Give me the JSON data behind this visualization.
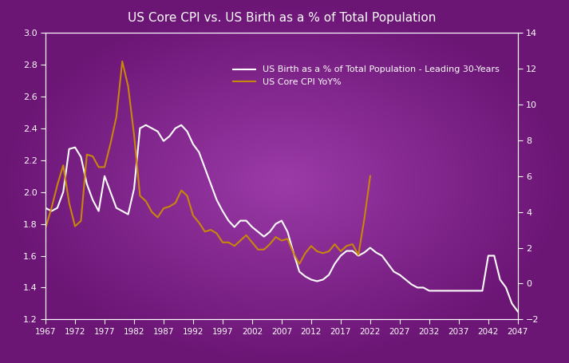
{
  "title": "US Core CPI vs. US Birth as a % of Total Population",
  "bg_color_outer": "#6B1F7A",
  "bg_color_inner": "#9B3BA0",
  "plot_bg_outer": "#6B1F7A",
  "plot_bg_inner": "#9B3BA0",
  "line1_color": "#FFFFFF",
  "line2_color": "#C8860A",
  "legend_label1": "US Birth as a % of Total Population - Leading 30-Years",
  "legend_label2": "US Core CPI YoY%",
  "xlim": [
    1967,
    2047
  ],
  "ylim_left": [
    1.2,
    3.0
  ],
  "ylim_right": [
    -2,
    14
  ],
  "xticks": [
    1967,
    1972,
    1977,
    1982,
    1987,
    1992,
    1997,
    2002,
    2007,
    2012,
    2017,
    2022,
    2027,
    2032,
    2037,
    2042,
    2047
  ],
  "yticks_left": [
    1.2,
    1.4,
    1.6,
    1.8,
    2.0,
    2.2,
    2.4,
    2.6,
    2.8,
    3.0
  ],
  "yticks_right": [
    -2,
    0,
    2,
    4,
    6,
    8,
    10,
    12,
    14
  ],
  "birth_data": {
    "years": [
      1967,
      1968,
      1969,
      1970,
      1971,
      1972,
      1973,
      1974,
      1975,
      1976,
      1977,
      1978,
      1979,
      1980,
      1981,
      1982,
      1983,
      1984,
      1985,
      1986,
      1987,
      1988,
      1989,
      1990,
      1991,
      1992,
      1993,
      1994,
      1995,
      1996,
      1997,
      1998,
      1999,
      2000,
      2001,
      2002,
      2003,
      2004,
      2005,
      2006,
      2007,
      2008,
      2009,
      2010,
      2011,
      2012,
      2013,
      2014,
      2015,
      2016,
      2017,
      2018,
      2019,
      2020,
      2021,
      2022,
      2023,
      2024,
      2025,
      2026,
      2027,
      2028,
      2029,
      2030,
      2031,
      2032,
      2033,
      2034,
      2035,
      2036,
      2037,
      2038,
      2039,
      2040,
      2041,
      2042,
      2043,
      2044,
      2045,
      2046,
      2047
    ],
    "values": [
      1.9,
      1.88,
      1.9,
      2.0,
      2.27,
      2.28,
      2.22,
      2.05,
      1.95,
      1.88,
      2.1,
      2.0,
      1.9,
      1.88,
      1.86,
      2.02,
      2.4,
      2.42,
      2.4,
      2.38,
      2.32,
      2.35,
      2.4,
      2.42,
      2.38,
      2.3,
      2.25,
      2.15,
      2.05,
      1.95,
      1.88,
      1.82,
      1.78,
      1.82,
      1.82,
      1.78,
      1.75,
      1.72,
      1.75,
      1.8,
      1.82,
      1.75,
      1.62,
      1.5,
      1.47,
      1.45,
      1.44,
      1.45,
      1.48,
      1.55,
      1.6,
      1.63,
      1.63,
      1.6,
      1.62,
      1.65,
      1.62,
      1.6,
      1.55,
      1.5,
      1.48,
      1.45,
      1.42,
      1.4,
      1.4,
      1.38,
      1.38,
      1.38,
      1.38,
      1.38,
      1.38,
      1.38,
      1.38,
      1.38,
      1.38,
      1.6,
      1.6,
      1.45,
      1.4,
      1.3,
      1.25
    ]
  },
  "cpi_data": {
    "years": [
      1967,
      1968,
      1969,
      1970,
      1971,
      1972,
      1973,
      1974,
      1975,
      1976,
      1977,
      1978,
      1979,
      1980,
      1981,
      1982,
      1983,
      1984,
      1985,
      1986,
      1987,
      1988,
      1989,
      1990,
      1991,
      1992,
      1993,
      1994,
      1995,
      1996,
      1997,
      1998,
      1999,
      2000,
      2001,
      2002,
      2003,
      2004,
      2005,
      2006,
      2007,
      2008,
      2009,
      2010,
      2011,
      2012,
      2013,
      2014,
      2015,
      2016,
      2017,
      2018,
      2019,
      2020,
      2021,
      2022
    ],
    "values": [
      3.1,
      4.2,
      5.5,
      6.6,
      4.5,
      3.2,
      3.5,
      7.2,
      7.1,
      6.5,
      6.5,
      7.8,
      9.3,
      12.4,
      11.0,
      8.3,
      4.9,
      4.6,
      4.0,
      3.7,
      4.2,
      4.3,
      4.5,
      5.2,
      4.9,
      3.8,
      3.4,
      2.9,
      3.0,
      2.8,
      2.3,
      2.3,
      2.1,
      2.4,
      2.7,
      2.3,
      1.9,
      1.9,
      2.2,
      2.6,
      2.4,
      2.5,
      1.7,
      1.1,
      1.7,
      2.1,
      1.8,
      1.7,
      1.8,
      2.2,
      1.8,
      2.1,
      2.2,
      1.6,
      3.6,
      6.0
    ]
  }
}
